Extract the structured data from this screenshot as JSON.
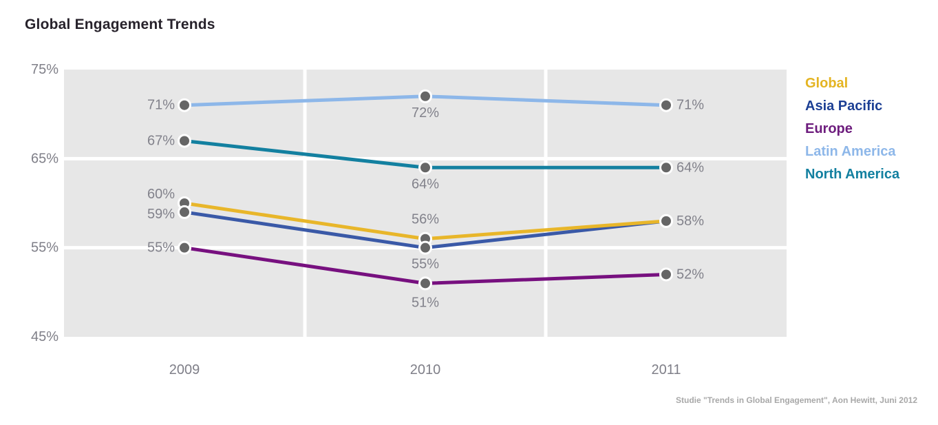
{
  "title": "Global Engagement Trends",
  "source_note": "Studie \"Trends in Global Engagement\", Aon Hewitt, Juni 2012",
  "colors": {
    "plot_background": "#e7e7e7",
    "gridline": "#ffffff",
    "marker_fill": "#666666",
    "marker_ring": "#ffffff",
    "axis_label": "#7f7f88",
    "data_label": "#82828b",
    "title": "#27222b",
    "source_note_color": "#a8a8a8"
  },
  "chart_data": {
    "type": "line",
    "title": "Global Engagement Trends",
    "categories": [
      "2009",
      "2010",
      "2011"
    ],
    "series": [
      {
        "name": "Global",
        "color": "#e8b62a",
        "legend_color": "#e4b422",
        "values": [
          60,
          56,
          58
        ]
      },
      {
        "name": "Asia Pacific",
        "color": "#3a59a7",
        "legend_color": "#1c3f94",
        "values": [
          59,
          55,
          58
        ]
      },
      {
        "name": "Europe",
        "color": "#77107f",
        "legend_color": "#6d1c7d",
        "values": [
          55,
          51,
          52
        ]
      },
      {
        "name": "Latin America",
        "color": "#8db7e9",
        "legend_color": "#8db7e9",
        "values": [
          71,
          72,
          71
        ]
      },
      {
        "name": "North America",
        "color": "#1380a0",
        "legend_color": "#1380a0",
        "values": [
          67,
          64,
          64
        ]
      }
    ],
    "yticks": [
      75,
      65,
      55,
      45
    ],
    "ylim": [
      45,
      75
    ],
    "value_suffix": "%",
    "grid": true,
    "legend_position": "right"
  }
}
